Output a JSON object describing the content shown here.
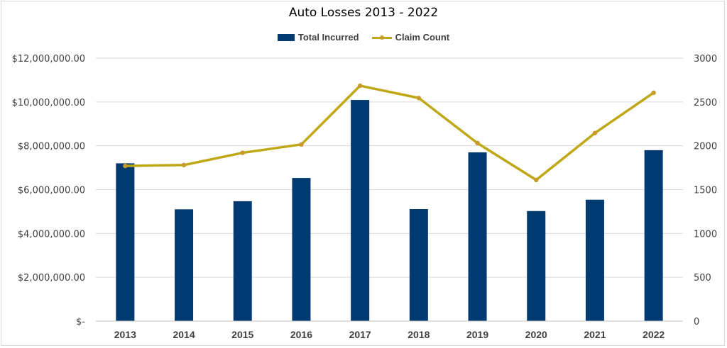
{
  "chart_data": {
    "type": "bar+line",
    "title": "Auto Losses 2013 - 2022",
    "categories": [
      "2013",
      "2014",
      "2015",
      "2016",
      "2017",
      "2018",
      "2019",
      "2020",
      "2021",
      "2022"
    ],
    "series": [
      {
        "name": "Total Incurred",
        "type": "bar",
        "axis": "left",
        "color": "#003a70",
        "values": [
          7200000,
          5100000,
          5470000,
          6530000,
          10090000,
          5110000,
          7700000,
          5020000,
          5540000,
          7800000
        ]
      },
      {
        "name": "Claim Count",
        "type": "line",
        "axis": "right",
        "color": "#bfa816",
        "marker_color": "#c79a2a",
        "values": [
          1770,
          1780,
          1920,
          2015,
          2685,
          2545,
          2030,
          1610,
          2145,
          2605
        ]
      }
    ],
    "y_left": {
      "ylim": [
        0,
        12000000
      ],
      "tick_values": [
        0,
        2000000,
        4000000,
        6000000,
        8000000,
        10000000,
        12000000
      ],
      "tick_labels": [
        "$-",
        "$2,000,000.00",
        "$4,000,000.00",
        "$6,000,000.00",
        "$8,000,000.00",
        "$10,000,000.00",
        "$12,000,000.00"
      ]
    },
    "y_right": {
      "ylim": [
        0,
        3000
      ],
      "tick_values": [
        0,
        500,
        1000,
        1500,
        2000,
        2500,
        3000
      ],
      "tick_labels": [
        "0",
        "500",
        "1000",
        "1500",
        "2000",
        "2500",
        "3000"
      ]
    },
    "grid": true,
    "legend_position": "top"
  }
}
